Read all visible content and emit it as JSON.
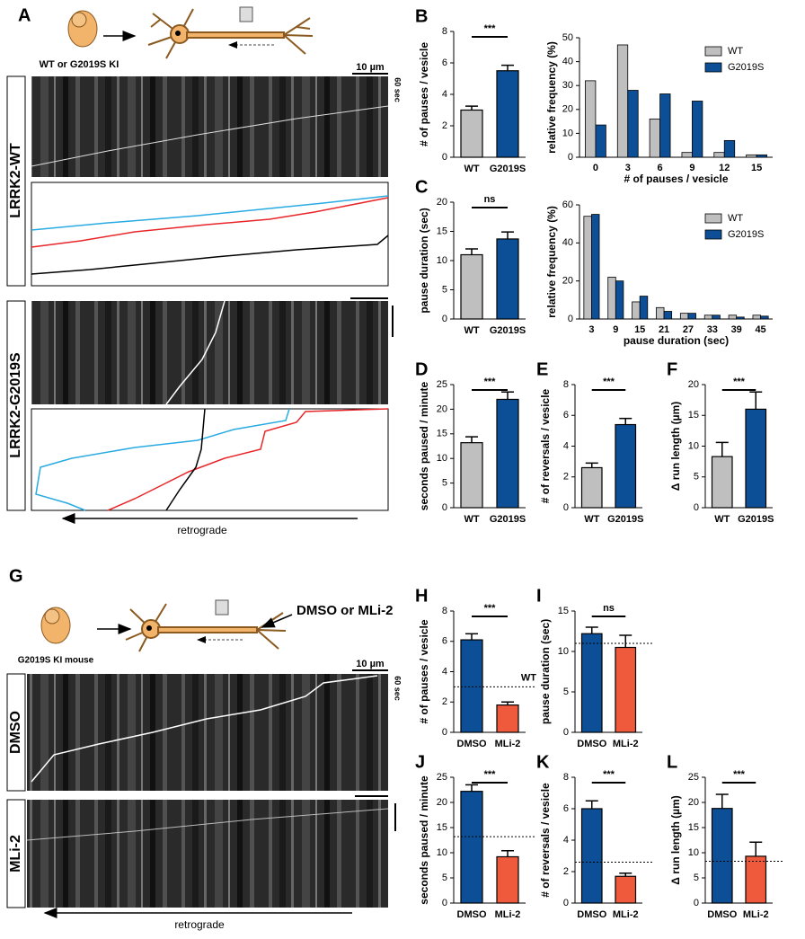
{
  "panel_a": {
    "label": "A",
    "genotype": "WT or G2019S KI",
    "scale_bar": "10 µm",
    "time_bar": "60 sec",
    "kymographs": [
      "LRRK2-WT",
      "LRRK2-G2019S"
    ],
    "direction": "retrograde"
  },
  "panel_g": {
    "label": "G",
    "mouse": "G2019S KI mouse",
    "treatment": "DMSO or MLi-2",
    "scale_bar": "10 µm",
    "time_bar": "60 sec",
    "kymographs": [
      "DMSO",
      "MLi-2"
    ],
    "direction": "retrograde"
  },
  "chart_data": [
    {
      "type": "bar",
      "panel": "B",
      "ylabel": "# of pauses / vesicle",
      "categories": [
        "WT",
        "G2019S"
      ],
      "values": [
        3.0,
        5.5
      ],
      "errors": [
        0.25,
        0.35
      ],
      "colors": [
        "#bfbfbf",
        "#0d4f96"
      ],
      "ylim": [
        0,
        8
      ],
      "yticks": [
        0,
        2,
        4,
        6,
        8
      ],
      "significance": "***"
    },
    {
      "type": "grouped_bar",
      "ylabel": "relative frequency (%)",
      "xlabel": "# of pauses / vesicle",
      "categories": [
        0,
        3,
        6,
        9,
        12,
        15
      ],
      "series": [
        {
          "name": "WT",
          "color": "#bfbfbf",
          "values": [
            32,
            47,
            16,
            2,
            2,
            1
          ]
        },
        {
          "name": "G2019S",
          "color": "#0d4f96",
          "values": [
            13.5,
            28,
            26.5,
            23.5,
            7,
            1
          ]
        }
      ],
      "ylim": [
        0,
        50
      ],
      "yticks": [
        0,
        10,
        20,
        30,
        40,
        50
      ],
      "legend": "upper right"
    },
    {
      "type": "bar",
      "panel": "C",
      "ylabel": "pause duration (sec)",
      "categories": [
        "WT",
        "G2019S"
      ],
      "values": [
        11,
        13.7
      ],
      "errors": [
        1,
        1.2
      ],
      "colors": [
        "#bfbfbf",
        "#0d4f96"
      ],
      "ylim": [
        0,
        20
      ],
      "yticks": [
        0,
        5,
        10,
        15,
        20
      ],
      "significance": "ns"
    },
    {
      "type": "grouped_bar",
      "ylabel": "relative frequency (%)",
      "xlabel": "pause duration (sec)",
      "categories": [
        3,
        9,
        15,
        21,
        27,
        33,
        39,
        45
      ],
      "series": [
        {
          "name": "WT",
          "color": "#bfbfbf",
          "values": [
            54,
            22,
            9,
            6,
            3,
            2,
            2,
            2
          ]
        },
        {
          "name": "G2019S",
          "color": "#0d4f96",
          "values": [
            55,
            20,
            12,
            4,
            3,
            2,
            1,
            1.5
          ]
        }
      ],
      "ylim": [
        0,
        60
      ],
      "yticks": [
        0,
        20,
        40,
        60
      ],
      "legend": "upper right"
    },
    {
      "type": "bar",
      "panel": "D",
      "ylabel": "seconds paused / minute",
      "categories": [
        "WT",
        "G2019S"
      ],
      "values": [
        13.2,
        22
      ],
      "errors": [
        1.2,
        1.5
      ],
      "colors": [
        "#bfbfbf",
        "#0d4f96"
      ],
      "ylim": [
        0,
        25
      ],
      "yticks": [
        0,
        5,
        10,
        15,
        20,
        25
      ],
      "significance": "***"
    },
    {
      "type": "bar",
      "panel": "E",
      "ylabel": "# of reversals / vesicle",
      "categories": [
        "WT",
        "G2019S"
      ],
      "values": [
        2.6,
        5.4
      ],
      "errors": [
        0.3,
        0.4
      ],
      "colors": [
        "#bfbfbf",
        "#0d4f96"
      ],
      "ylim": [
        0,
        8
      ],
      "yticks": [
        0,
        2,
        4,
        6,
        8
      ],
      "significance": "***"
    },
    {
      "type": "bar",
      "panel": "F",
      "ylabel": "Δ run length (µm)",
      "categories": [
        "WT",
        "G2019S"
      ],
      "values": [
        8.3,
        16
      ],
      "errors": [
        2.3,
        2.8
      ],
      "colors": [
        "#bfbfbf",
        "#0d4f96"
      ],
      "ylim": [
        0,
        20
      ],
      "yticks": [
        0,
        5,
        10,
        15,
        20
      ],
      "significance": "***"
    },
    {
      "type": "bar",
      "panel": "H",
      "ylabel": "# of pauses / vesicle",
      "categories": [
        "DMSO",
        "MLi-2"
      ],
      "values": [
        6.1,
        1.8
      ],
      "errors": [
        0.4,
        0.2
      ],
      "colors": [
        "#0d4f96",
        "#f05a3c"
      ],
      "ylim": [
        0,
        8
      ],
      "yticks": [
        0,
        2,
        4,
        6,
        8
      ],
      "significance": "***",
      "reference": 3.0,
      "reference_label": "WT"
    },
    {
      "type": "bar",
      "panel": "I",
      "ylabel": "pause duration (sec)",
      "categories": [
        "DMSO",
        "MLi-2"
      ],
      "values": [
        12.2,
        10.5
      ],
      "errors": [
        0.8,
        1.5
      ],
      "colors": [
        "#0d4f96",
        "#f05a3c"
      ],
      "ylim": [
        0,
        15
      ],
      "yticks": [
        0,
        5,
        10,
        15
      ],
      "significance": "ns",
      "reference": 11
    },
    {
      "type": "bar",
      "panel": "J",
      "ylabel": "seconds paused / minute",
      "categories": [
        "DMSO",
        "MLi-2"
      ],
      "values": [
        22.2,
        9.2
      ],
      "errors": [
        1.3,
        1.2
      ],
      "colors": [
        "#0d4f96",
        "#f05a3c"
      ],
      "ylim": [
        0,
        25
      ],
      "yticks": [
        0,
        5,
        10,
        15,
        20,
        25
      ],
      "significance": "***",
      "reference": 13.2
    },
    {
      "type": "bar",
      "panel": "K",
      "ylabel": "# of reversals / vesicle",
      "categories": [
        "DMSO",
        "MLi-2"
      ],
      "values": [
        6,
        1.7
      ],
      "errors": [
        0.5,
        0.2
      ],
      "colors": [
        "#0d4f96",
        "#f05a3c"
      ],
      "ylim": [
        0,
        8
      ],
      "yticks": [
        0,
        2,
        4,
        6,
        8
      ],
      "significance": "***",
      "reference": 2.6
    },
    {
      "type": "bar",
      "panel": "L",
      "ylabel": "Δ run length (µm)",
      "categories": [
        "DMSO",
        "MLi-2"
      ],
      "values": [
        18.8,
        9.3
      ],
      "errors": [
        2.8,
        2.8
      ],
      "colors": [
        "#0d4f96",
        "#f05a3c"
      ],
      "ylim": [
        0,
        25
      ],
      "yticks": [
        0,
        5,
        10,
        15,
        20,
        25
      ],
      "significance": "***",
      "reference": 8.3
    }
  ]
}
